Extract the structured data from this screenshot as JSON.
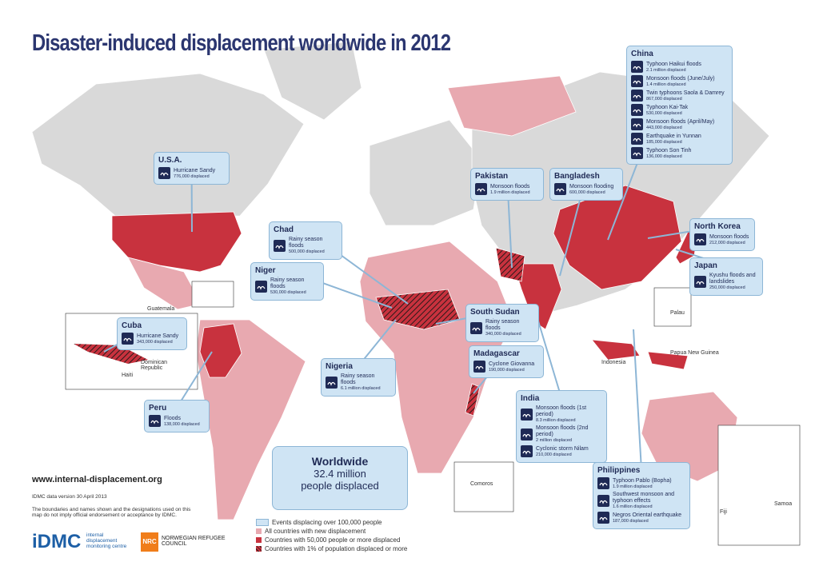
{
  "title": "Disaster-induced displacement worldwide in 2012",
  "callouts": [
    {
      "country": "China",
      "events": [
        {
          "name": "Typhoon Haikui floods",
          "figure": "2.1 million displaced"
        },
        {
          "name": "Monsoon floods (June/July)",
          "figure": "1.4 million displaced"
        },
        {
          "name": "Twin typhoons Saola & Damrey",
          "figure": "867,000 displaced"
        },
        {
          "name": "Typhoon Kai-Tak",
          "figure": "530,000 displaced"
        },
        {
          "name": "Monsoon floods (April/May)",
          "figure": "443,000 displaced"
        },
        {
          "name": "Earthquake in Yunnan",
          "figure": "185,000 displaced"
        },
        {
          "name": "Typhoon Son Tinh",
          "figure": "136,000 displaced"
        }
      ]
    },
    {
      "country": "U.S.A.",
      "events": [
        {
          "name": "Hurricane Sandy",
          "figure": "776,000 displaced"
        }
      ]
    },
    {
      "country": "Pakistan",
      "events": [
        {
          "name": "Monsoon floods",
          "figure": "1.9 million displaced"
        }
      ]
    },
    {
      "country": "Bangladesh",
      "events": [
        {
          "name": "Monsoon flooding",
          "figure": "600,000 displaced"
        }
      ]
    },
    {
      "country": "Chad",
      "events": [
        {
          "name": "Rainy season floods",
          "figure": "500,000 displaced"
        }
      ]
    },
    {
      "country": "Niger",
      "events": [
        {
          "name": "Rainy season floods",
          "figure": "530,000 displaced"
        }
      ]
    },
    {
      "country": "North Korea",
      "events": [
        {
          "name": "Monsoon floods",
          "figure": "212,000 displaced"
        }
      ]
    },
    {
      "country": "Japan",
      "events": [
        {
          "name": "Kyushu floods and landslides",
          "figure": "250,000 displaced"
        }
      ]
    },
    {
      "country": "Cuba",
      "events": [
        {
          "name": "Hurricane Sandy",
          "figure": "343,000 displaced"
        }
      ]
    },
    {
      "country": "South Sudan",
      "events": [
        {
          "name": "Rainy season floods",
          "figure": "340,000 displaced"
        }
      ]
    },
    {
      "country": "Madagascar",
      "events": [
        {
          "name": "Cyclone Giovanna",
          "figure": "190,000 displaced"
        }
      ]
    },
    {
      "country": "Nigeria",
      "events": [
        {
          "name": "Rainy season floods",
          "figure": "6.1 million displaced"
        }
      ]
    },
    {
      "country": "Peru",
      "events": [
        {
          "name": "Floods",
          "figure": "138,000 displaced"
        }
      ]
    },
    {
      "country": "India",
      "events": [
        {
          "name": "Monsoon floods (1st period)",
          "figure": "8.3 million displaced"
        },
        {
          "name": "Monsoon floods (2nd period)",
          "figure": "2 million displaced"
        },
        {
          "name": "Cyclonic storm Nilam",
          "figure": "210,000 displaced"
        }
      ]
    },
    {
      "country": "Philippines",
      "events": [
        {
          "name": "Typhoon Pablo (Bopha)",
          "figure": "1.9 million displaced"
        },
        {
          "name": "Southwest monsoon and typhoon effects",
          "figure": "1.6 million displaced"
        },
        {
          "name": "Negros Oriental earthquake",
          "figure": "187,000 displaced"
        }
      ]
    }
  ],
  "map_labels": [
    "Guatemala",
    "Dominican Republic",
    "Haiti",
    "Palau",
    "Papua New Guinea",
    "Indonesia",
    "Comoros",
    "Fiji",
    "Samoa"
  ],
  "worldwide": {
    "heading": "Worldwide",
    "figure": "32.4 million",
    "caption": "people displaced"
  },
  "website": "www.internal-displacement.org",
  "data_version": "IDMC data version 30 April 2013",
  "disclaimer": "The boundaries and names shown and the designations used on this map do not imply official endorsement or acceptance by IDMC.",
  "logos": {
    "idmc": "iDMC",
    "idmc_text": "internal displacement monitoring centre",
    "nrc": "NRC",
    "nrc_text": "NORWEGIAN REFUGEE COUNCIL"
  },
  "legend": {
    "events": "Events displacing over 100,000 people",
    "all": "All countries with new displacement",
    "fifty_k": "Countries with 50,000 people or more displaced",
    "one_percent": "Countries with 1% of population displaced or more"
  }
}
